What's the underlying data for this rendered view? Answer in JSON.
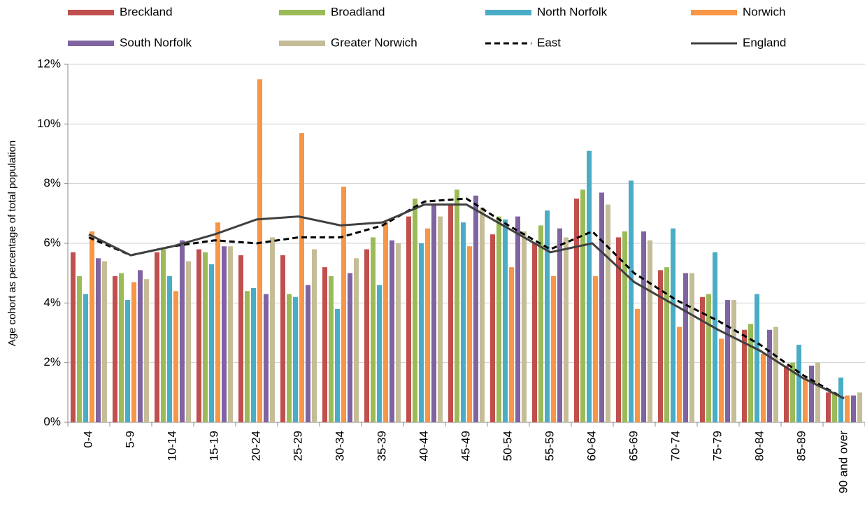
{
  "chart_data": {
    "type": "bar",
    "ylabel": "Age cohort as percentage of total population",
    "categories": [
      "0-4",
      "5-9",
      "10-14",
      "15-19",
      "20-24",
      "25-29",
      "30-34",
      "35-39",
      "40-44",
      "45-49",
      "50-54",
      "55-59",
      "60-64",
      "65-69",
      "70-74",
      "75-79",
      "80-84",
      "85-89",
      "90 and over"
    ],
    "ylim": [
      0,
      12
    ],
    "yticks": [
      {
        "value": 0,
        "label": "0%"
      },
      {
        "value": 2,
        "label": "2%"
      },
      {
        "value": 4,
        "label": "4%"
      },
      {
        "value": 6,
        "label": "6%"
      },
      {
        "value": 8,
        "label": "8%"
      },
      {
        "value": 10,
        "label": "10%"
      },
      {
        "value": 12,
        "label": "12%"
      }
    ],
    "grid": true,
    "legend": "top",
    "series": [
      {
        "name": "Breckland",
        "color": "#c0504d",
        "type": "bar",
        "values": [
          5.7,
          4.9,
          5.7,
          5.8,
          5.6,
          5.6,
          5.2,
          5.8,
          6.9,
          7.3,
          6.3,
          6.0,
          7.5,
          6.2,
          5.1,
          4.2,
          3.1,
          1.9,
          1.0
        ]
      },
      {
        "name": "Broadland",
        "color": "#9bbb59",
        "type": "bar",
        "values": [
          4.9,
          5.0,
          5.8,
          5.7,
          4.4,
          4.3,
          4.9,
          6.2,
          7.5,
          7.8,
          6.9,
          6.6,
          7.8,
          6.4,
          5.2,
          4.3,
          3.3,
          2.0,
          1.0
        ]
      },
      {
        "name": "North Norfolk",
        "color": "#4bacc6",
        "type": "bar",
        "values": [
          4.3,
          4.1,
          4.9,
          5.3,
          4.5,
          4.2,
          3.8,
          4.6,
          6.0,
          6.7,
          6.8,
          7.1,
          9.1,
          8.1,
          6.5,
          5.7,
          4.3,
          2.6,
          1.5
        ]
      },
      {
        "name": "Norwich",
        "color": "#f79646",
        "type": "bar",
        "values": [
          6.4,
          4.7,
          4.4,
          6.7,
          11.5,
          9.7,
          7.9,
          6.7,
          6.5,
          5.9,
          5.2,
          4.9,
          4.9,
          3.8,
          3.2,
          2.8,
          2.3,
          1.5,
          0.9
        ]
      },
      {
        "name": "South Norfolk",
        "color": "#8064a2",
        "type": "bar",
        "values": [
          5.5,
          5.1,
          6.1,
          5.9,
          4.3,
          4.6,
          5.0,
          6.1,
          7.3,
          7.6,
          6.9,
          6.5,
          7.7,
          6.4,
          5.0,
          4.1,
          3.1,
          1.9,
          0.9
        ]
      },
      {
        "name": "Greater Norwich",
        "color": "#c4bd97",
        "type": "bar",
        "values": [
          5.4,
          4.8,
          5.4,
          5.9,
          6.2,
          5.8,
          5.5,
          6.0,
          6.9,
          7.2,
          6.4,
          6.2,
          7.3,
          6.1,
          5.0,
          4.1,
          3.2,
          2.0,
          1.0
        ]
      },
      {
        "name": "East",
        "color": "#000000",
        "type": "line",
        "style": "dashed",
        "values": [
          6.2,
          5.6,
          5.9,
          6.1,
          6.0,
          6.2,
          6.2,
          6.6,
          7.4,
          7.5,
          6.6,
          5.8,
          6.4,
          5.0,
          4.1,
          3.4,
          2.6,
          1.6,
          0.8
        ]
      },
      {
        "name": "England",
        "color": "#404040",
        "type": "line",
        "style": "solid",
        "values": [
          6.3,
          5.6,
          5.9,
          6.3,
          6.8,
          6.9,
          6.6,
          6.7,
          7.3,
          7.3,
          6.5,
          5.7,
          6.0,
          4.7,
          3.9,
          3.1,
          2.4,
          1.5,
          0.8
        ]
      }
    ]
  }
}
